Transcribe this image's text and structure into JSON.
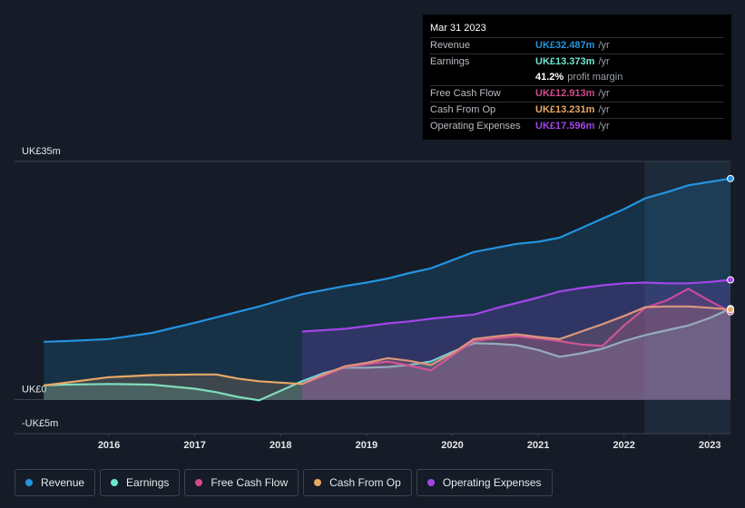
{
  "chart_data": {
    "type": "line",
    "x": [
      2015.24,
      2015.5,
      2016.0,
      2016.5,
      2017.0,
      2017.25,
      2017.5,
      2017.75,
      2018.0,
      2018.25,
      2018.5,
      2018.75,
      2019.0,
      2019.25,
      2019.5,
      2019.75,
      2020.0,
      2020.25,
      2020.5,
      2020.75,
      2021.0,
      2021.25,
      2021.5,
      2021.75,
      2022.0,
      2022.25,
      2022.5,
      2022.75,
      2023.0,
      2023.24
    ],
    "series": [
      {
        "name": "Revenue",
        "color": "#2394df",
        "values": [
          8.5,
          8.6,
          8.9,
          9.8,
          11.3,
          12.1,
          12.9,
          13.7,
          14.6,
          15.5,
          16.1,
          16.7,
          17.2,
          17.8,
          18.6,
          19.3,
          20.5,
          21.7,
          22.3,
          22.9,
          23.2,
          23.8,
          25.2,
          26.6,
          28.0,
          29.6,
          30.5,
          31.5,
          32.0,
          32.487
        ]
      },
      {
        "name": "Earnings",
        "color": "#6ee7d0",
        "values": [
          2.1,
          2.2,
          2.3,
          2.2,
          1.6,
          1.1,
          0.4,
          -0.1,
          1.3,
          2.7,
          3.9,
          4.7,
          4.7,
          4.8,
          5.1,
          5.6,
          7.0,
          8.3,
          8.2,
          8.0,
          7.3,
          6.3,
          6.8,
          7.5,
          8.6,
          9.5,
          10.2,
          10.9,
          12.0,
          13.373
        ]
      },
      {
        "name": "Free Cash Flow",
        "color": "#d44a8a",
        "values": [
          null,
          null,
          null,
          null,
          null,
          null,
          null,
          null,
          null,
          2.3,
          3.5,
          4.8,
          5.2,
          5.6,
          5.0,
          4.3,
          6.5,
          8.6,
          9.0,
          9.3,
          9.0,
          8.6,
          8.1,
          7.9,
          10.9,
          13.5,
          14.6,
          16.3,
          14.5,
          12.913
        ]
      },
      {
        "name": "Cash From Op",
        "color": "#e8a866",
        "values": [
          2.1,
          2.5,
          3.3,
          3.6,
          3.7,
          3.7,
          3.1,
          2.7,
          2.5,
          2.3,
          3.7,
          4.9,
          5.4,
          6.1,
          5.7,
          5.1,
          6.8,
          8.9,
          9.3,
          9.6,
          9.2,
          8.9,
          10.0,
          11.1,
          12.3,
          13.6,
          13.7,
          13.7,
          13.5,
          13.231
        ]
      },
      {
        "name": "Operating Expenses",
        "color": "#a246e8",
        "values": [
          null,
          null,
          null,
          null,
          null,
          null,
          null,
          null,
          null,
          10.0,
          10.2,
          10.4,
          10.8,
          11.2,
          11.5,
          11.9,
          12.2,
          12.5,
          13.4,
          14.2,
          15.0,
          15.9,
          16.4,
          16.8,
          17.1,
          17.2,
          17.1,
          17.1,
          17.3,
          17.596
        ]
      }
    ],
    "xlim": [
      2014.9,
      2023.24
    ],
    "xticks": [
      2016,
      2017,
      2018,
      2019,
      2020,
      2021,
      2022,
      2023
    ],
    "ylim": [
      -5,
      35
    ],
    "yticks": [
      {
        "value": -5,
        "label": "-UK£5m"
      },
      {
        "value": 0,
        "label": "UK£0"
      },
      {
        "value": 35,
        "label": "UK£35m"
      }
    ],
    "grid": true,
    "tooltip": {
      "date": "Mar 31 2023",
      "rows": [
        {
          "label": "Revenue",
          "value": "UK£32.487m",
          "unit": "/yr"
        },
        {
          "label": "Earnings",
          "value": "UK£13.373m",
          "unit": "/yr"
        },
        {
          "value": "41.2%",
          "unit": "profit margin"
        },
        {
          "label": "Free Cash Flow",
          "value": "UK£12.913m",
          "unit": "/yr"
        },
        {
          "label": "Cash From Op",
          "value": "UK£13.231m",
          "unit": "/yr"
        },
        {
          "label": "Operating Expenses",
          "value": "UK£17.596m",
          "unit": "/yr"
        }
      ]
    }
  }
}
